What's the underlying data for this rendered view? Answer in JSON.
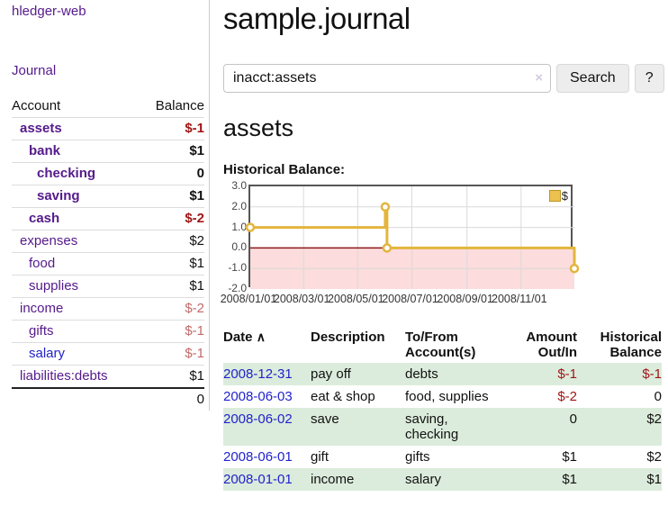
{
  "sidebar": {
    "app_title": "hledger-web",
    "journal_link": "Journal",
    "accounts": {
      "header_account": "Account",
      "header_balance": "Balance",
      "rows": [
        {
          "account": "assets",
          "balance": "$-1",
          "indent": "ind1",
          "acct_class": "acct-bold",
          "link_class": "link-purple",
          "bal_class": "bal-bold neg"
        },
        {
          "account": "bank",
          "balance": "$1",
          "indent": "ind2",
          "acct_class": "acct-bold",
          "link_class": "link-purple",
          "bal_class": "bal-bold"
        },
        {
          "account": "checking",
          "balance": "0",
          "indent": "ind3",
          "acct_class": "acct-bold",
          "link_class": "link-purple",
          "bal_class": "bal-bold"
        },
        {
          "account": "saving",
          "balance": "$1",
          "indent": "ind3",
          "acct_class": "acct-bold",
          "link_class": "link-purple",
          "bal_class": "bal-bold"
        },
        {
          "account": "cash",
          "balance": "$-2",
          "indent": "ind2",
          "acct_class": "acct-bold",
          "link_class": "link-purple",
          "bal_class": "bal-bold neg"
        },
        {
          "account": "expenses",
          "balance": "$2",
          "indent": "ind1",
          "acct_class": "",
          "link_class": "link-purple",
          "bal_class": ""
        },
        {
          "account": "food",
          "balance": "$1",
          "indent": "ind2",
          "acct_class": "",
          "link_class": "link-purple",
          "bal_class": ""
        },
        {
          "account": "supplies",
          "balance": "$1",
          "indent": "ind2",
          "acct_class": "",
          "link_class": "link-purple",
          "bal_class": ""
        },
        {
          "account": "income",
          "balance": "$-2",
          "indent": "ind1",
          "acct_class": "",
          "link_class": "link-purple",
          "bal_class": "neg-soft"
        },
        {
          "account": "gifts",
          "balance": "$-1",
          "indent": "ind2",
          "acct_class": "",
          "link_class": "link-purple",
          "bal_class": "neg-soft"
        },
        {
          "account": "salary",
          "balance": "$-1",
          "indent": "ind2",
          "acct_class": "",
          "link_class": "link-blue",
          "bal_class": "neg-soft"
        },
        {
          "account": "liabilities:debts",
          "balance": "$1",
          "indent": "ind1",
          "acct_class": "",
          "link_class": "link-purple",
          "bal_class": ""
        }
      ],
      "total": "0"
    }
  },
  "main": {
    "title": "sample.journal",
    "search": {
      "value": "inacct:assets",
      "clear_icon": "×",
      "button_label": "Search",
      "help_label": "?"
    },
    "account_heading": "assets",
    "chart_label": "Historical Balance:",
    "register": {
      "headers": {
        "date": "Date",
        "sort_icon": "∧",
        "description": "Description",
        "tofrom": "To/From\nAccount(s)",
        "amount": "Amount\nOut/In",
        "balance": "Historical\nBalance"
      },
      "rows": [
        {
          "date": "2008-12-31",
          "description": "pay off",
          "tofrom": "debts",
          "amount": "$-1",
          "balance": "$-1",
          "row_class": "stripe",
          "amount_class": "neg",
          "balance_class": "neg"
        },
        {
          "date": "2008-06-03",
          "description": "eat & shop",
          "tofrom": "food, supplies",
          "amount": "$-2",
          "balance": "0",
          "row_class": "",
          "amount_class": "neg",
          "balance_class": ""
        },
        {
          "date": "2008-06-02",
          "description": "save",
          "tofrom": "saving,\nchecking",
          "amount": "0",
          "balance": "$2",
          "row_class": "stripe",
          "amount_class": "",
          "balance_class": ""
        },
        {
          "date": "2008-06-01",
          "description": "gift",
          "tofrom": "gifts",
          "amount": "$1",
          "balance": "$2",
          "row_class": "",
          "amount_class": "",
          "balance_class": ""
        },
        {
          "date": "2008-01-01",
          "description": "income",
          "tofrom": "salary",
          "amount": "$1",
          "balance": "$1",
          "row_class": "stripe",
          "amount_class": "",
          "balance_class": ""
        }
      ]
    }
  },
  "chart_data": {
    "type": "line",
    "title": "Historical Balance:",
    "step": true,
    "legend": {
      "label": "$",
      "position": "top-right"
    },
    "ylim": [
      -2.0,
      3.0
    ],
    "y_ticks": [
      3.0,
      2.0,
      1.0,
      0.0,
      -1.0,
      -2.0
    ],
    "y_tick_labels": [
      "3.0",
      "2.0",
      "1.0",
      "0.0",
      "-1.0",
      "-2.0"
    ],
    "x_tick_labels": [
      "2008/01/01",
      "2008/03/01",
      "2008/05/01",
      "2008/07/01",
      "2008/09/01",
      "2008/11/01"
    ],
    "x_tick_days": [
      0,
      60,
      121,
      182,
      244,
      305
    ],
    "x_range_days": 365,
    "series": [
      {
        "name": "$",
        "points": [
          {
            "date": "2008-01-01",
            "day": 0,
            "value": 1,
            "marker": true
          },
          {
            "date": "2008-06-01",
            "day": 152,
            "value": 2,
            "marker": true
          },
          {
            "date": "2008-06-02",
            "day": 153,
            "value": 2,
            "marker": false
          },
          {
            "date": "2008-06-03",
            "day": 154,
            "value": 0,
            "marker": true
          },
          {
            "date": "2008-12-31",
            "day": 365,
            "value": -1,
            "marker": true
          }
        ]
      }
    ],
    "colors": {
      "line": "#e3b53d",
      "marker_fill": "#ffffff",
      "negative_region": "#fcdcdc",
      "zero_line": "#8b1a1a",
      "grid": "#dadada",
      "border": "#555555"
    }
  }
}
